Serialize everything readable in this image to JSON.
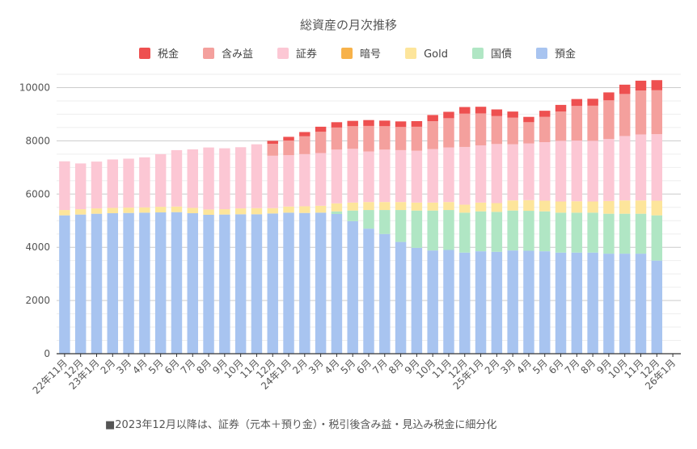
{
  "chart_data": {
    "type": "bar",
    "stacked": true,
    "title": "総資産の月次推移",
    "legend_position": "top",
    "grid": true,
    "ylim": [
      0,
      10500
    ],
    "yticks": [
      0,
      2000,
      4000,
      6000,
      8000,
      10000
    ],
    "categories": [
      "22年11月",
      "12月",
      "23年1月",
      "2月",
      "3月",
      "4月",
      "5月",
      "6月",
      "7月",
      "8月",
      "9月",
      "10月",
      "11月",
      "12月",
      "24年1月",
      "2月",
      "3月",
      "4月",
      "5月",
      "6月",
      "7月",
      "8月",
      "9月",
      "10月",
      "11月",
      "12月",
      "25年1月",
      "2月",
      "3月",
      "4月",
      "5月",
      "6月",
      "7月",
      "8月",
      "9月",
      "10月",
      "11月",
      "12月",
      "26年1月"
    ],
    "series": [
      {
        "name": "預金",
        "color": "#a8c4f0",
        "values": [
          5200,
          5230,
          5260,
          5280,
          5290,
          5300,
          5310,
          5320,
          5280,
          5220,
          5230,
          5240,
          5240,
          5270,
          5300,
          5290,
          5300,
          5250,
          4980,
          4700,
          4500,
          4200,
          3980,
          3880,
          3900,
          3800,
          3850,
          3830,
          3880,
          3870,
          3850,
          3800,
          3800,
          3800,
          3760,
          3760,
          3760,
          3500,
          0
        ]
      },
      {
        "name": "国債",
        "color": "#b0e6c4",
        "values": [
          0,
          0,
          0,
          0,
          0,
          0,
          0,
          0,
          0,
          0,
          0,
          0,
          0,
          0,
          0,
          0,
          0,
          100,
          400,
          700,
          900,
          1200,
          1400,
          1500,
          1500,
          1500,
          1500,
          1500,
          1500,
          1500,
          1500,
          1500,
          1500,
          1500,
          1500,
          1500,
          1500,
          1700,
          0
        ]
      },
      {
        "name": "Gold",
        "color": "#fde59b",
        "values": [
          200,
          200,
          200,
          200,
          200,
          200,
          210,
          210,
          200,
          200,
          200,
          220,
          230,
          200,
          230,
          250,
          260,
          300,
          300,
          300,
          300,
          300,
          300,
          300,
          300,
          300,
          330,
          330,
          380,
          400,
          400,
          420,
          430,
          420,
          480,
          500,
          500,
          550,
          0
        ]
      },
      {
        "name": "暗号",
        "color": "#f7b24a",
        "values": [
          0,
          0,
          0,
          0,
          0,
          0,
          0,
          0,
          0,
          0,
          0,
          0,
          0,
          0,
          0,
          0,
          0,
          0,
          0,
          0,
          0,
          0,
          0,
          0,
          0,
          0,
          0,
          0,
          0,
          0,
          0,
          0,
          0,
          0,
          0,
          0,
          0,
          0,
          0
        ]
      },
      {
        "name": "証券",
        "color": "#fcc7d4",
        "values": [
          1830,
          1720,
          1760,
          1820,
          1840,
          1880,
          1980,
          2120,
          2200,
          2330,
          2290,
          2300,
          2400,
          1970,
          1930,
          1960,
          1980,
          2020,
          2020,
          1900,
          1970,
          1950,
          1950,
          2010,
          2050,
          2170,
          2150,
          2220,
          2110,
          2130,
          2200,
          2280,
          2280,
          2280,
          2330,
          2420,
          2480,
          2500,
          0
        ]
      },
      {
        "name": "含み益",
        "color": "#f4a09d",
        "values": [
          0,
          0,
          0,
          0,
          0,
          0,
          0,
          0,
          0,
          0,
          0,
          0,
          0,
          450,
          550,
          670,
          800,
          830,
          850,
          960,
          880,
          870,
          900,
          1050,
          1100,
          1250,
          1200,
          1050,
          1000,
          800,
          950,
          1100,
          1300,
          1320,
          1450,
          1580,
          1650,
          1650,
          0
        ]
      },
      {
        "name": "税金",
        "color": "#ee5050",
        "values": [
          0,
          0,
          0,
          0,
          0,
          0,
          0,
          0,
          0,
          0,
          0,
          0,
          0,
          110,
          140,
          160,
          190,
          200,
          200,
          220,
          210,
          210,
          210,
          230,
          240,
          250,
          250,
          250,
          230,
          200,
          230,
          250,
          260,
          260,
          300,
          350,
          370,
          380,
          0
        ]
      }
    ],
    "footnote": "■2023年12月以降は、証券（元本＋預り金）・税引後含み益・見込み税金に細分化"
  }
}
